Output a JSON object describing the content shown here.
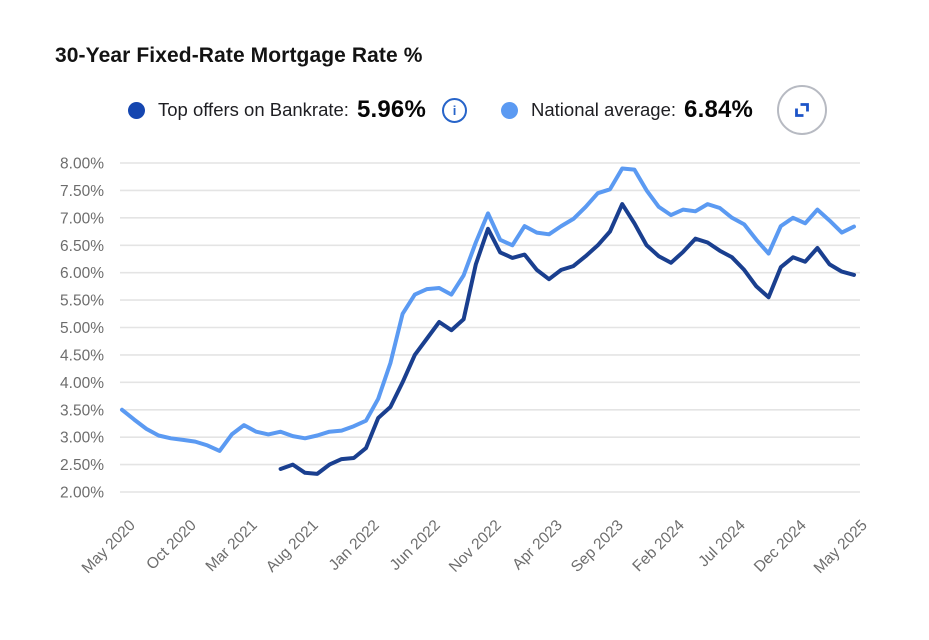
{
  "title": "30-Year Fixed-Rate Mortgage Rate %",
  "legend": {
    "items": [
      {
        "label": "Top offers on Bankrate:",
        "value": "5.96%",
        "color": "#1546b0"
      },
      {
        "label": "National average:",
        "value": "6.84%",
        "color": "#5b9af2"
      }
    ],
    "icons": {
      "info": "i",
      "expand": "expand-corners"
    }
  },
  "colors": {
    "top_offers_line": "#1a3f8f",
    "national_average_line": "#5b9af2",
    "gridline": "#e4e4e4",
    "axis_text": "#6d6d6d",
    "icon_blue": "#1d54c8"
  },
  "chart_data": {
    "type": "line",
    "title": "30-Year Fixed-Rate Mortgage Rate %",
    "x_unit": "month",
    "x_start": "May 2020",
    "x_end": "May 2025",
    "n_points": 61,
    "x_ticks": [
      "May 2020",
      "Oct 2020",
      "Mar 2021",
      "Aug 2021",
      "Jan 2022",
      "Jun 2022",
      "Nov 2022",
      "Apr 2023",
      "Sep 2023",
      "Feb 2024",
      "Jul 2024",
      "Dec 2024",
      "May 2025"
    ],
    "x_tick_indices": [
      0,
      5,
      10,
      15,
      20,
      25,
      30,
      35,
      40,
      45,
      50,
      55,
      60
    ],
    "y_ticks": [
      "8.00%",
      "7.50%",
      "7.00%",
      "6.50%",
      "6.00%",
      "5.50%",
      "5.00%",
      "4.50%",
      "4.00%",
      "3.50%",
      "3.00%",
      "2.50%",
      "2.00%"
    ],
    "ylim": [
      2.0,
      8.0
    ],
    "grid": "horizontal-only",
    "legend_position": "top",
    "series": [
      {
        "name": "National average",
        "current_value": "6.84%",
        "color": "#5b9af2",
        "start_index": 0,
        "values": [
          3.5,
          3.32,
          3.15,
          3.03,
          2.98,
          2.95,
          2.92,
          2.85,
          2.75,
          3.05,
          3.22,
          3.1,
          3.05,
          3.1,
          3.02,
          2.98,
          3.03,
          3.1,
          3.12,
          3.2,
          3.3,
          3.7,
          4.35,
          5.25,
          5.6,
          5.7,
          5.72,
          5.6,
          5.95,
          6.55,
          7.08,
          6.6,
          6.5,
          6.85,
          6.73,
          6.7,
          6.85,
          6.98,
          7.2,
          7.45,
          7.52,
          7.9,
          7.88,
          7.5,
          7.2,
          7.05,
          7.15,
          7.12,
          7.25,
          7.18,
          7.0,
          6.88,
          6.6,
          6.35,
          6.85,
          7.0,
          6.9,
          7.15,
          6.95,
          6.73,
          6.84
        ]
      },
      {
        "name": "Top offers on Bankrate",
        "current_value": "5.96%",
        "color": "#1a3f8f",
        "start_index": 13,
        "values": [
          2.42,
          2.5,
          2.35,
          2.33,
          2.5,
          2.6,
          2.62,
          2.8,
          3.35,
          3.55,
          4.0,
          4.5,
          4.8,
          5.1,
          4.95,
          5.15,
          6.15,
          6.8,
          6.37,
          6.27,
          6.33,
          6.05,
          5.88,
          6.05,
          6.12,
          6.3,
          6.5,
          6.75,
          7.25,
          6.9,
          6.5,
          6.3,
          6.18,
          6.38,
          6.62,
          6.55,
          6.4,
          6.28,
          6.05,
          5.75,
          5.55,
          6.1,
          6.28,
          6.2,
          6.45,
          6.15,
          6.02,
          5.96
        ]
      }
    ]
  }
}
